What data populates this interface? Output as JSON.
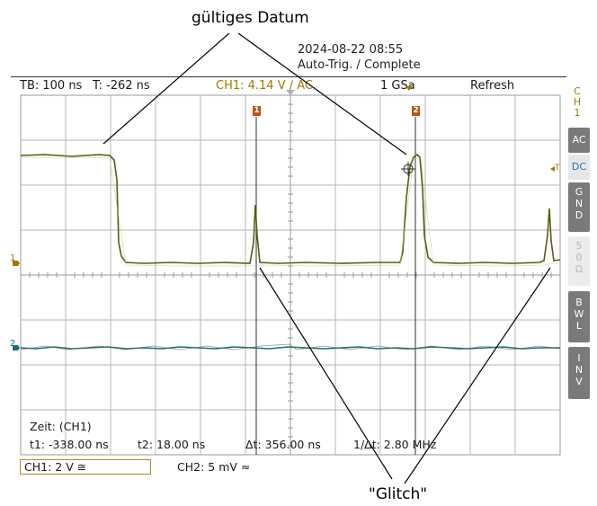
{
  "annotations": {
    "top_label": "gültiges Datum",
    "bottom_label": "\"Glitch\""
  },
  "header": {
    "datetime": "2024-08-22 08:55",
    "status": "Auto-Trig. / Complete"
  },
  "top_bar": {
    "timebase": "TB: 100 ns",
    "trigger_time": "T: -262 ns",
    "trigger_info": "CH1: 4.14 V ∕ AC",
    "sample_rate": "1 GSa",
    "refresh": "Refresh"
  },
  "side_menu": {
    "title": [
      "C",
      "H",
      "1"
    ],
    "ac": "AC",
    "dc": "DC",
    "gnd": [
      "G",
      "N",
      "D"
    ],
    "fifty": [
      "5",
      "0",
      "Ω"
    ],
    "bwl": [
      "B",
      "W",
      "L"
    ],
    "inv": [
      "I",
      "N",
      "V"
    ]
  },
  "markers": {
    "cursor1": "1",
    "cursor2": "2",
    "ch1_level": "1",
    "ch2_level": "2",
    "trigger_marker": "T"
  },
  "measurements": {
    "title": "Zeit: (CH1)",
    "t1": "t1: -338.00 ns",
    "t2": "t2: 18.00 ns",
    "dt": "Δt: 356.00 ns",
    "inv_dt": "1/Δt: 2.80 MHz"
  },
  "bottom_bar": {
    "ch1": "CH1: 2 V ≅",
    "ch2": "CH2: 5 mV ≈"
  },
  "colors": {
    "ch1_trace": "#5a5a14",
    "ch2_trace": "#1f6f7a",
    "cursor": "#c0501c",
    "grid": "#b4b4b4"
  }
}
